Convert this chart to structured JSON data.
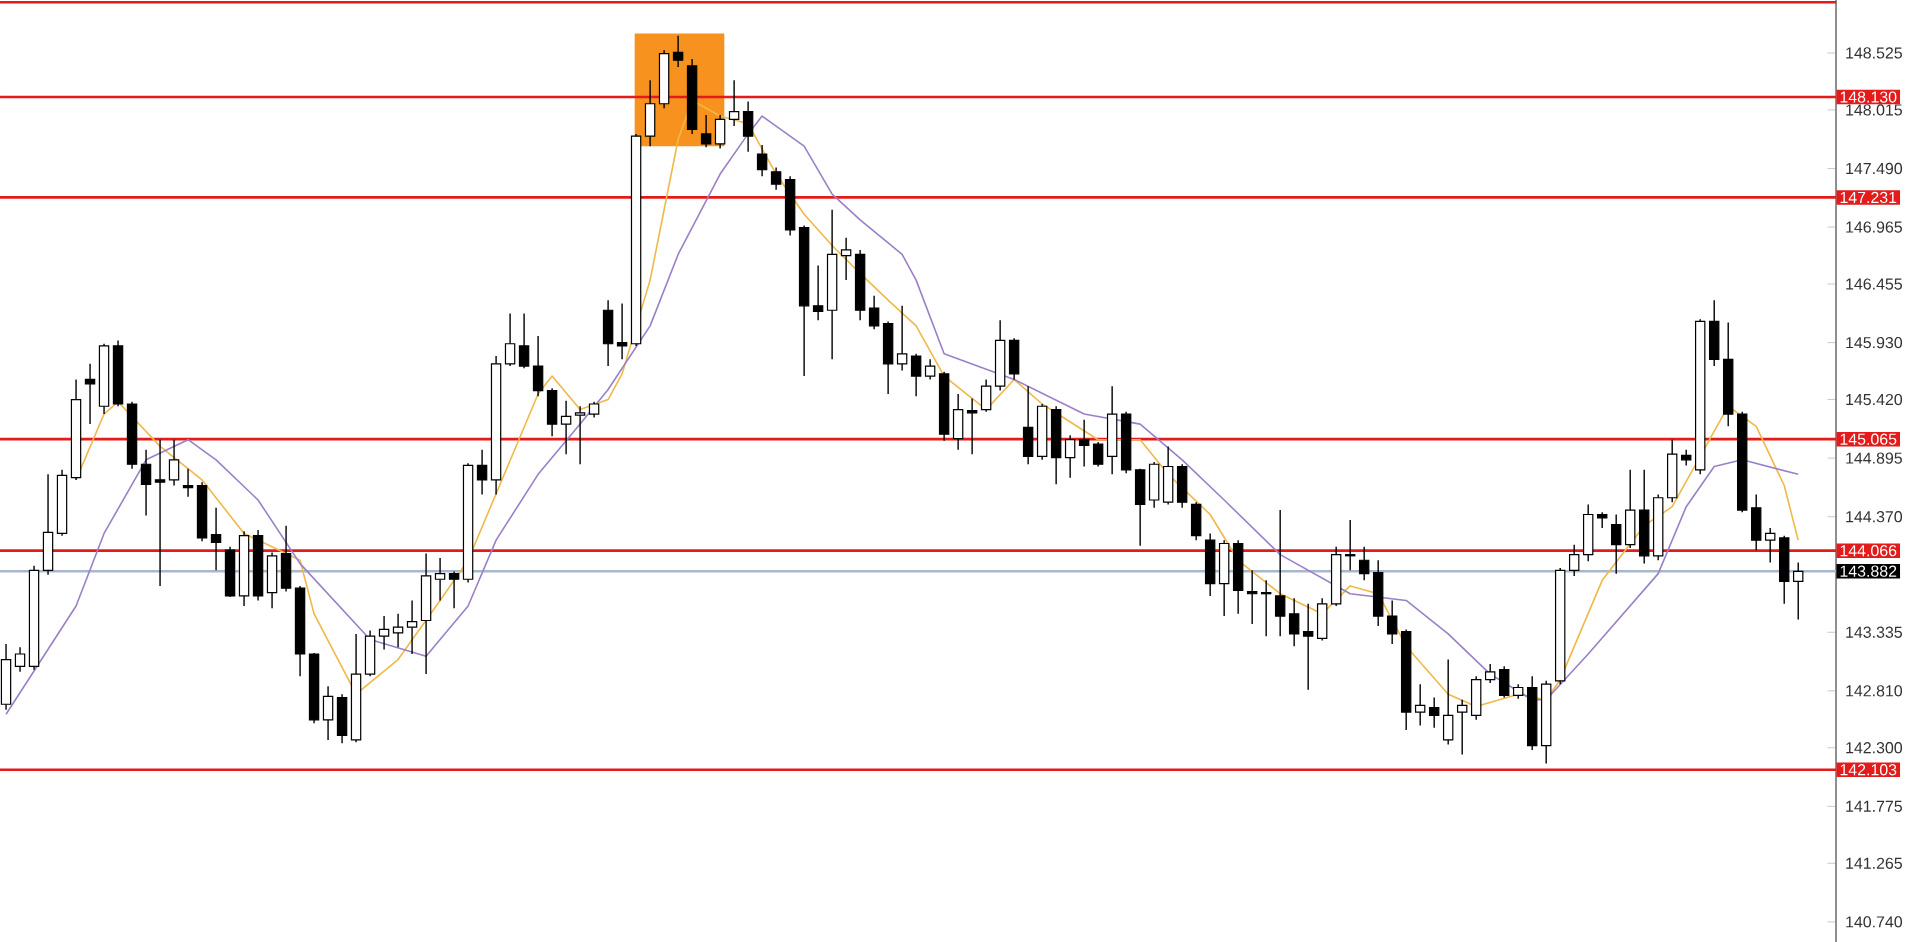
{
  "chart_data": {
    "type": "candlestick",
    "color": "#000000",
    "categories": [
      null,
      null,
      null,
      null,
      null,
      null,
      null,
      null,
      null,
      null,
      null,
      null,
      null,
      null,
      null,
      null,
      null,
      null,
      null,
      null,
      null,
      null,
      null,
      null,
      null,
      null,
      null,
      null,
      null,
      null,
      null,
      null,
      null,
      null,
      null,
      null,
      null,
      null,
      null,
      null,
      null,
      null,
      null,
      null,
      null,
      null,
      null,
      null,
      null,
      null,
      null,
      null,
      null,
      null,
      null,
      null,
      null,
      null,
      null,
      null,
      null,
      null,
      null,
      null,
      null,
      null,
      null,
      null,
      null,
      null,
      null,
      null,
      null,
      null,
      null,
      null,
      null,
      null,
      null,
      null,
      null,
      null,
      null,
      null,
      null,
      null,
      null,
      null,
      null,
      null,
      null,
      null,
      null,
      null,
      null,
      null,
      null,
      null,
      null,
      null,
      null,
      null,
      null,
      null,
      null,
      null,
      null,
      null,
      null,
      null,
      null,
      null,
      null,
      null,
      null,
      null,
      null,
      null,
      null,
      null,
      null,
      null,
      null,
      null,
      null,
      null,
      null,
      null,
      null
    ],
    "ohlc": [
      [
        142.69,
        143.23,
        142.64,
        143.09
      ],
      [
        143.03,
        143.2,
        142.98,
        143.14
      ],
      [
        143.03,
        143.93,
        143.0,
        143.89
      ],
      [
        143.89,
        144.75,
        143.85,
        144.23
      ],
      [
        144.22,
        144.79,
        144.2,
        144.74
      ],
      [
        144.72,
        145.6,
        144.7,
        145.42
      ],
      [
        145.6,
        145.74,
        145.2,
        145.56
      ],
      [
        145.36,
        145.92,
        145.29,
        145.9
      ],
      [
        145.9,
        145.95,
        145.36,
        145.38
      ],
      [
        145.38,
        145.4,
        144.8,
        144.84
      ],
      [
        144.84,
        144.97,
        144.38,
        144.66
      ],
      [
        144.7,
        145.06,
        143.75,
        144.68
      ],
      [
        144.7,
        145.06,
        144.65,
        144.88
      ],
      [
        144.65,
        144.8,
        144.55,
        144.63
      ],
      [
        144.65,
        144.68,
        144.15,
        144.18
      ],
      [
        144.21,
        144.45,
        143.89,
        144.14
      ],
      [
        144.07,
        144.1,
        143.65,
        143.66
      ],
      [
        143.66,
        144.24,
        143.57,
        144.2
      ],
      [
        144.2,
        144.25,
        143.62,
        143.66
      ],
      [
        143.69,
        144.05,
        143.55,
        144.02
      ],
      [
        144.04,
        144.29,
        143.7,
        143.73
      ],
      [
        143.73,
        143.75,
        142.94,
        143.14
      ],
      [
        143.14,
        143.15,
        142.52,
        142.55
      ],
      [
        142.55,
        142.85,
        142.37,
        142.76
      ],
      [
        142.75,
        142.78,
        142.34,
        142.41
      ],
      [
        142.37,
        143.32,
        142.35,
        142.96
      ],
      [
        142.96,
        143.35,
        142.94,
        143.3
      ],
      [
        143.3,
        143.48,
        143.18,
        143.36
      ],
      [
        143.33,
        143.5,
        143.2,
        143.38
      ],
      [
        143.38,
        143.62,
        143.14,
        143.43
      ],
      [
        143.44,
        144.04,
        142.96,
        143.84
      ],
      [
        143.81,
        144.0,
        143.62,
        143.86
      ],
      [
        143.86,
        143.88,
        143.55,
        143.81
      ],
      [
        143.81,
        144.85,
        143.78,
        144.83
      ],
      [
        144.83,
        144.97,
        144.57,
        144.7
      ],
      [
        144.7,
        145.81,
        144.57,
        145.74
      ],
      [
        145.74,
        146.19,
        145.72,
        145.92
      ],
      [
        145.9,
        146.19,
        145.7,
        145.72
      ],
      [
        145.72,
        145.99,
        145.45,
        145.5
      ],
      [
        145.5,
        145.52,
        145.09,
        145.2
      ],
      [
        145.2,
        145.41,
        144.93,
        145.27
      ],
      [
        145.28,
        145.36,
        144.84,
        145.3
      ],
      [
        145.29,
        145.4,
        145.26,
        145.38
      ],
      [
        146.22,
        146.31,
        145.72,
        145.92
      ],
      [
        145.93,
        146.28,
        145.78,
        145.9
      ],
      [
        145.92,
        147.8,
        145.9,
        147.78
      ],
      [
        147.78,
        148.28,
        147.69,
        148.07
      ],
      [
        148.07,
        148.55,
        148.03,
        148.52
      ],
      [
        148.53,
        148.68,
        148.4,
        148.46
      ],
      [
        148.41,
        148.47,
        147.8,
        147.84
      ],
      [
        147.8,
        147.97,
        147.68,
        147.71
      ],
      [
        147.71,
        147.97,
        147.67,
        147.93
      ],
      [
        147.93,
        148.28,
        147.87,
        148.0
      ],
      [
        148.0,
        148.09,
        147.64,
        147.78
      ],
      [
        147.62,
        147.7,
        147.42,
        147.48
      ],
      [
        147.46,
        147.5,
        147.3,
        147.35
      ],
      [
        147.39,
        147.42,
        146.89,
        146.94
      ],
      [
        146.96,
        146.98,
        145.63,
        146.26
      ],
      [
        146.26,
        146.62,
        146.13,
        146.21
      ],
      [
        146.22,
        147.12,
        145.78,
        146.72
      ],
      [
        146.71,
        146.87,
        146.49,
        146.76
      ],
      [
        146.72,
        146.76,
        146.13,
        146.22
      ],
      [
        146.24,
        146.35,
        146.05,
        146.08
      ],
      [
        146.1,
        146.12,
        145.47,
        145.74
      ],
      [
        145.74,
        146.26,
        145.68,
        145.83
      ],
      [
        145.81,
        145.83,
        145.45,
        145.63
      ],
      [
        145.63,
        145.78,
        145.6,
        145.72
      ],
      [
        145.65,
        145.67,
        145.05,
        145.11
      ],
      [
        145.07,
        145.47,
        144.97,
        145.33
      ],
      [
        145.32,
        145.43,
        144.93,
        145.3
      ],
      [
        145.33,
        145.6,
        145.31,
        145.54
      ],
      [
        145.54,
        146.13,
        145.5,
        145.95
      ],
      [
        145.95,
        145.97,
        145.6,
        145.65
      ],
      [
        145.17,
        145.54,
        144.84,
        144.91
      ],
      [
        144.91,
        145.38,
        144.88,
        145.36
      ],
      [
        145.33,
        145.36,
        144.66,
        144.9
      ],
      [
        144.9,
        145.1,
        144.72,
        145.06
      ],
      [
        145.06,
        145.24,
        144.82,
        145.01
      ],
      [
        145.02,
        145.04,
        144.82,
        144.84
      ],
      [
        144.91,
        145.54,
        144.75,
        145.29
      ],
      [
        145.29,
        145.31,
        144.76,
        144.79
      ],
      [
        144.79,
        144.8,
        144.11,
        144.48
      ],
      [
        144.52,
        144.86,
        144.45,
        144.84
      ],
      [
        144.5,
        145.0,
        144.48,
        144.82
      ],
      [
        144.82,
        144.84,
        144.45,
        144.5
      ],
      [
        144.48,
        144.5,
        144.16,
        144.2
      ],
      [
        144.16,
        144.22,
        143.66,
        143.77
      ],
      [
        143.77,
        144.16,
        143.48,
        144.13
      ],
      [
        144.13,
        144.16,
        143.5,
        143.71
      ],
      [
        143.7,
        143.89,
        143.41,
        143.68
      ],
      [
        143.69,
        143.8,
        143.3,
        143.68
      ],
      [
        143.66,
        144.43,
        143.3,
        143.48
      ],
      [
        143.5,
        143.64,
        143.21,
        143.32
      ],
      [
        143.34,
        143.59,
        142.82,
        143.3
      ],
      [
        143.28,
        143.64,
        143.26,
        143.59
      ],
      [
        143.59,
        144.1,
        143.57,
        144.03
      ],
      [
        144.03,
        144.34,
        143.89,
        144.02
      ],
      [
        143.98,
        144.1,
        143.8,
        143.86
      ],
      [
        143.87,
        143.98,
        143.39,
        143.48
      ],
      [
        143.48,
        143.62,
        143.23,
        143.32
      ],
      [
        143.34,
        143.36,
        142.46,
        142.62
      ],
      [
        142.62,
        142.87,
        142.5,
        142.68
      ],
      [
        142.66,
        142.75,
        142.48,
        142.59
      ],
      [
        142.37,
        143.09,
        142.33,
        142.59
      ],
      [
        142.62,
        142.73,
        142.24,
        142.68
      ],
      [
        142.59,
        142.94,
        142.55,
        142.91
      ],
      [
        142.91,
        143.05,
        142.88,
        142.98
      ],
      [
        143.0,
        143.03,
        142.75,
        142.77
      ],
      [
        142.77,
        142.87,
        142.74,
        142.84
      ],
      [
        142.84,
        142.94,
        142.28,
        142.32
      ],
      [
        142.32,
        142.9,
        142.16,
        142.87
      ],
      [
        142.9,
        143.91,
        142.87,
        143.89
      ],
      [
        143.89,
        144.12,
        143.84,
        144.03
      ],
      [
        144.03,
        144.48,
        143.97,
        144.39
      ],
      [
        144.39,
        144.41,
        144.27,
        144.36
      ],
      [
        144.3,
        144.39,
        143.86,
        144.12
      ],
      [
        144.12,
        144.79,
        144.09,
        144.43
      ],
      [
        144.43,
        144.79,
        143.95,
        144.02
      ],
      [
        144.02,
        144.57,
        143.98,
        144.54
      ],
      [
        144.54,
        145.06,
        144.5,
        144.93
      ],
      [
        144.92,
        144.97,
        144.83,
        144.88
      ],
      [
        144.79,
        146.14,
        144.75,
        146.12
      ],
      [
        146.12,
        146.31,
        145.72,
        145.78
      ],
      [
        145.78,
        146.11,
        145.18,
        145.29
      ],
      [
        145.29,
        145.31,
        144.41,
        144.43
      ],
      [
        144.45,
        144.57,
        144.07,
        144.16
      ],
      [
        144.16,
        144.27,
        143.96,
        144.22
      ],
      [
        144.18,
        144.2,
        143.59,
        143.79
      ],
      [
        143.79,
        143.96,
        143.45,
        143.88
      ]
    ],
    "series": [
      {
        "type": "line",
        "color": "#f0b848",
        "values": [
          null,
          null,
          null,
          null,
          null,
          144.7,
          null,
          145.29,
          145.4,
          null,
          null,
          145.0,
          null,
          null,
          144.7,
          null,
          null,
          144.22,
          null,
          null,
          null,
          143.98,
          143.5,
          null,
          null,
          142.78,
          null,
          null,
          143.09,
          null,
          null,
          143.62,
          null,
          143.98,
          null,
          null,
          null,
          null,
          145.47,
          145.63,
          null,
          145.33,
          null,
          145.42,
          145.65,
          null,
          146.49,
          null,
          147.75,
          148.1,
          null,
          147.96,
          null,
          147.89,
          null,
          147.44,
          null,
          147.08,
          null,
          146.8,
          null,
          146.55,
          null,
          146.31,
          null,
          146.08,
          null,
          145.63,
          null,
          null,
          145.33,
          null,
          145.6,
          null,
          145.38,
          null,
          null,
          null,
          145.06,
          null,
          null,
          145.06,
          null,
          144.75,
          null,
          null,
          144.39,
          null,
          143.98,
          null,
          null,
          143.68,
          null,
          null,
          143.5,
          null,
          143.75,
          null,
          143.68,
          null,
          143.21,
          null,
          null,
          142.78,
          null,
          142.67,
          null,
          null,
          142.78,
          null,
          142.73,
          142.91,
          null,
          null,
          143.8,
          null,
          null,
          144.29,
          null,
          144.46,
          null,
          null,
          null,
          145.36,
          null,
          145.18,
          null,
          144.65,
          144.16
        ]
      },
      {
        "type": "line",
        "color": "#9a80c8",
        "values": [
          142.6,
          null,
          null,
          null,
          null,
          143.57,
          null,
          144.22,
          null,
          null,
          144.88,
          null,
          null,
          145.06,
          null,
          144.88,
          null,
          null,
          144.52,
          null,
          null,
          143.95,
          null,
          null,
          null,
          null,
          143.27,
          null,
          null,
          null,
          143.12,
          null,
          null,
          143.57,
          null,
          144.16,
          null,
          null,
          144.75,
          null,
          null,
          145.2,
          null,
          145.51,
          null,
          null,
          146.08,
          null,
          146.72,
          null,
          null,
          147.44,
          null,
          147.8,
          147.96,
          null,
          null,
          147.69,
          null,
          147.26,
          null,
          147.03,
          null,
          null,
          146.72,
          146.49,
          null,
          145.83,
          null,
          null,
          null,
          null,
          145.6,
          null,
          null,
          null,
          null,
          145.29,
          null,
          null,
          null,
          145.2,
          null,
          null,
          144.88,
          null,
          null,
          144.52,
          null,
          null,
          null,
          144.03,
          null,
          null,
          null,
          null,
          143.68,
          null,
          null,
          null,
          143.62,
          null,
          null,
          143.32,
          null,
          null,
          142.96,
          null,
          null,
          142.73,
          142.73,
          null,
          null,
          143.14,
          null,
          null,
          null,
          null,
          143.86,
          null,
          144.46,
          null,
          144.82,
          null,
          144.88,
          null,
          null,
          null,
          144.75
        ]
      }
    ],
    "ylim": [
      140.56,
      149.0
    ],
    "yticks": [
      {
        "value": 148.525,
        "label": "148.525"
      },
      {
        "value": 148.015,
        "label": "148.015"
      },
      {
        "value": 147.49,
        "label": "147.490"
      },
      {
        "value": 146.965,
        "label": "146.965"
      },
      {
        "value": 146.455,
        "label": "146.455"
      },
      {
        "value": 145.93,
        "label": "145.930"
      },
      {
        "value": 145.42,
        "label": "145.420"
      },
      {
        "value": 144.895,
        "label": "144.895"
      },
      {
        "value": 144.37,
        "label": "144.370"
      },
      {
        "value": 143.335,
        "label": "143.335"
      },
      {
        "value": 142.81,
        "label": "142.810"
      },
      {
        "value": 142.3,
        "label": "142.300"
      },
      {
        "value": 141.775,
        "label": "141.775"
      },
      {
        "value": 141.265,
        "label": "141.265"
      },
      {
        "value": 140.74,
        "label": "140.740"
      }
    ],
    "tick_labels": "y",
    "ref_lines": [
      {
        "axis": "y",
        "value": 148.98,
        "color": "#e31b1b"
      },
      {
        "axis": "y",
        "value": 148.13,
        "label": "148.130",
        "color": "#e31b1b"
      },
      {
        "axis": "y",
        "value": 147.231,
        "label": "147.231",
        "color": "#e31b1b"
      },
      {
        "axis": "y",
        "value": 145.065,
        "label": "145.065",
        "color": "#e31b1b"
      },
      {
        "axis": "y",
        "value": 144.066,
        "label": "144.066",
        "color": "#e31b1b"
      },
      {
        "axis": "y",
        "value": 143.882,
        "label": "143.882",
        "color": "#a8b8cc"
      },
      {
        "axis": "y",
        "value": 142.103,
        "label": "142.103",
        "color": "#e31b1b"
      }
    ]
  }
}
